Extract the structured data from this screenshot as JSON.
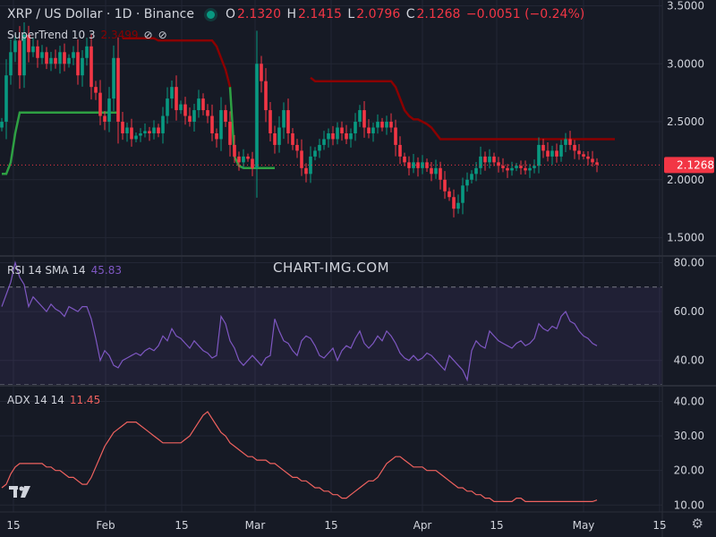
{
  "header": {
    "symbol": "XRP / US Dollar · 1D · Binance",
    "open_label": "O",
    "open": "2.1320",
    "high_label": "H",
    "high": "2.1415",
    "low_label": "L",
    "low": "2.0796",
    "close_label": "C",
    "close": "2.1268",
    "change": "−0.0051 (−0.24%)"
  },
  "indicators": {
    "supertrend": {
      "label": "SuperTrend 10 3",
      "value": "2.3499"
    },
    "rsi": {
      "label": "RSI 14 SMA 14",
      "value": "45.83"
    },
    "adx": {
      "label": "ADX 14 14",
      "value": "11.45"
    }
  },
  "watermark": "CHART-IMG.COM",
  "price_tag": "2.1268",
  "colors": {
    "background": "#161a25",
    "grid": "#232735",
    "up": "#089981",
    "down": "#f23645",
    "supertrend_up": "#2ea043",
    "supertrend_down": "#8b0000",
    "rsi": "#7e57c2",
    "adx": "#f0625f",
    "text": "#d1d4dc"
  },
  "icons": [
    "tradingview-logo-icon",
    "settings-gear-icon",
    "status-dot-icon",
    "eye-off-icon"
  ],
  "chart_data": [
    {
      "type": "candlestick",
      "title": "XRP / US Dollar · 1D · Binance",
      "x_ticks": [
        "15",
        "Feb",
        "15",
        "Mar",
        "15",
        "Apr",
        "15",
        "May",
        "15"
      ],
      "y_ticks": [
        "1.5000",
        "2.0000",
        "2.5000",
        "3.0000",
        "3.5000"
      ],
      "ylim": [
        1.35,
        3.55
      ],
      "last_price": 2.1268,
      "x_start": "2025-01-15",
      "close": [
        2.5,
        2.9,
        3.1,
        3.2,
        2.9,
        3.25,
        3.1,
        3.15,
        3.05,
        3.1,
        3.0,
        3.05,
        3.0,
        3.1,
        3.0,
        3.05,
        3.1,
        2.9,
        3.05,
        3.15,
        2.8,
        2.75,
        2.55,
        2.5,
        2.7,
        3.05,
        2.5,
        2.4,
        2.45,
        2.35,
        2.38,
        2.4,
        2.42,
        2.4,
        2.45,
        2.4,
        2.55,
        2.7,
        2.8,
        2.6,
        2.65,
        2.55,
        2.5,
        2.6,
        2.7,
        2.6,
        2.55,
        2.4,
        2.35,
        2.6,
        2.5,
        2.3,
        2.2,
        2.15,
        2.2,
        2.18,
        2.1,
        3.0,
        2.85,
        2.6,
        2.4,
        2.3,
        2.45,
        2.6,
        2.4,
        2.3,
        2.25,
        2.1,
        2.05,
        2.2,
        2.25,
        2.3,
        2.35,
        2.4,
        2.35,
        2.45,
        2.4,
        2.35,
        2.4,
        2.5,
        2.6,
        2.45,
        2.4,
        2.45,
        2.5,
        2.45,
        2.5,
        2.45,
        2.3,
        2.2,
        2.15,
        2.1,
        2.15,
        2.1,
        2.15,
        2.1,
        2.05,
        2.1,
        2.0,
        1.9,
        1.85,
        1.75,
        1.8,
        1.95,
        2.0,
        2.05,
        2.1,
        2.2,
        2.15,
        2.2,
        2.15,
        2.12,
        2.1,
        2.08,
        2.1,
        2.12,
        2.1,
        2.08,
        2.1,
        2.12,
        2.3,
        2.25,
        2.2,
        2.25,
        2.2,
        2.3,
        2.35,
        2.3,
        2.25,
        2.22,
        2.2,
        2.18,
        2.15,
        2.13
      ]
    },
    {
      "type": "line",
      "name": "SuperTrend 10 3",
      "x_start": "2025-01-15",
      "up_series": [
        2.05,
        2.05,
        2.15,
        2.4,
        2.58,
        2.58,
        2.58,
        2.58,
        2.58,
        2.58,
        2.58,
        2.58,
        2.58,
        2.58,
        2.58,
        2.58,
        2.58,
        2.58,
        2.58,
        2.58,
        2.58,
        2.58,
        2.58,
        2.58,
        2.58,
        2.58,
        2.58,
        null,
        null,
        null,
        null,
        null,
        null,
        null,
        null,
        null,
        null,
        null,
        null,
        null,
        null,
        null,
        null,
        null,
        null,
        null,
        null,
        null,
        null,
        null,
        null,
        null,
        null,
        null,
        null,
        null,
        null,
        null,
        null,
        null,
        null,
        null,
        null,
        null,
        null,
        null,
        null,
        null,
        null,
        null,
        null,
        null,
        null,
        null,
        null,
        null,
        null,
        null,
        null,
        null,
        null,
        null,
        null,
        null,
        null,
        null,
        null,
        null,
        null,
        null,
        null,
        null,
        null,
        null,
        null,
        null,
        null,
        null,
        null,
        null,
        null,
        null,
        null,
        null,
        null,
        null,
        null,
        null,
        null,
        null,
        null,
        null,
        null,
        null,
        null,
        null,
        null,
        null,
        null,
        null,
        null,
        null,
        null,
        null,
        null,
        null,
        null,
        null,
        null,
        null,
        null,
        null,
        null,
        null
      ],
      "down_series": [
        null,
        null,
        null,
        null,
        null,
        null,
        null,
        null,
        null,
        null,
        null,
        null,
        null,
        null,
        null,
        null,
        null,
        null,
        null,
        null,
        null,
        null,
        null,
        null,
        null,
        null,
        null,
        3.22,
        3.22,
        3.22,
        3.22,
        3.22,
        3.22,
        3.22,
        3.22,
        3.2,
        3.2,
        3.2,
        3.2,
        3.2,
        3.2,
        3.2,
        3.2,
        3.2,
        3.2,
        3.2,
        3.2,
        3.2,
        3.15,
        3.05,
        2.95,
        2.8,
        null,
        null,
        null,
        null,
        null,
        null,
        null,
        null,
        null,
        null,
        null,
        null,
        null,
        null,
        null,
        null,
        null,
        2.88,
        2.85,
        2.85,
        2.85,
        2.85,
        2.85,
        2.85,
        2.85,
        2.85,
        2.85,
        2.85,
        2.85,
        2.85,
        2.85,
        2.85,
        2.85,
        2.85,
        2.85,
        2.85,
        2.8,
        2.7,
        2.6,
        2.55,
        2.52,
        2.52,
        2.5,
        2.48,
        2.45,
        2.4,
        2.35,
        2.35,
        2.35,
        2.35,
        2.35,
        2.35,
        2.35,
        2.35,
        2.35,
        2.35,
        2.35,
        2.35,
        2.35,
        2.35,
        2.35,
        2.35,
        2.35,
        2.35,
        2.35,
        2.35,
        2.35,
        2.35,
        2.35,
        2.35,
        2.35,
        2.35,
        2.35,
        2.35,
        2.35,
        2.35,
        2.35,
        2.35,
        2.35,
        2.35,
        2.35,
        2.35,
        2.35,
        2.35,
        2.35,
        2.35
      ],
      "mid_series": [
        null,
        null,
        null,
        null,
        null,
        null,
        null,
        null,
        null,
        null,
        null,
        null,
        null,
        null,
        null,
        null,
        null,
        null,
        null,
        null,
        null,
        null,
        null,
        null,
        null,
        null,
        null,
        null,
        null,
        null,
        null,
        null,
        null,
        null,
        null,
        null,
        null,
        null,
        null,
        null,
        null,
        null,
        null,
        null,
        null,
        null,
        null,
        null,
        null,
        null,
        null,
        2.8,
        2.2,
        2.12,
        2.1,
        2.1,
        2.1,
        2.1,
        2.1,
        2.1,
        2.1,
        2.1,
        null,
        null,
        null,
        null,
        null,
        null,
        null,
        null,
        null,
        null,
        null,
        null,
        null,
        null,
        null,
        null,
        null,
        null,
        null,
        null,
        null,
        null,
        null,
        null,
        null,
        null,
        null,
        null,
        null,
        null,
        null,
        null,
        null,
        null,
        null,
        null,
        null,
        null,
        null,
        null,
        null,
        null,
        null,
        null,
        null,
        null,
        null,
        null,
        null,
        null,
        null,
        null,
        null,
        null,
        null,
        null,
        null,
        null,
        null,
        null,
        null,
        null,
        null,
        null,
        null,
        null,
        null,
        null,
        null,
        null,
        null,
        null
      ]
    },
    {
      "type": "line",
      "name": "RSI 14 SMA 14",
      "y_ticks": [
        "40.00",
        "60.00",
        "80.00"
      ],
      "ylim": [
        30,
        82
      ],
      "bands": [
        30,
        70
      ],
      "x_start": "2025-01-15",
      "values": [
        62,
        67,
        72,
        80,
        74,
        71,
        62,
        66,
        64,
        62,
        60,
        63,
        61,
        60,
        58,
        62,
        61,
        60,
        62,
        62,
        57,
        49,
        40,
        44,
        42,
        38,
        37,
        40,
        41,
        42,
        43,
        42,
        44,
        45,
        44,
        46,
        50,
        48,
        53,
        50,
        49,
        47,
        45,
        48,
        46,
        44,
        43,
        41,
        42,
        58,
        55,
        48,
        45,
        40,
        38,
        40,
        42,
        40,
        38,
        41,
        42,
        57,
        52,
        48,
        47,
        44,
        42,
        48,
        50,
        49,
        46,
        42,
        41,
        43,
        45,
        40,
        44,
        46,
        45,
        49,
        52,
        47,
        45,
        47,
        50,
        48,
        52,
        50,
        47,
        43,
        41,
        40,
        42,
        40,
        41,
        43,
        42,
        40,
        38,
        36,
        42,
        40,
        38,
        36,
        32,
        44,
        48,
        46,
        45,
        52,
        50,
        48,
        47,
        46,
        45,
        47,
        48,
        46,
        47,
        49,
        55,
        53,
        52,
        54,
        53,
        58,
        60,
        56,
        55,
        52,
        50,
        49,
        47,
        46
      ],
      "value": 45.83
    },
    {
      "type": "line",
      "name": "ADX 14 14",
      "y_ticks": [
        "10.00",
        "20.00",
        "30.00",
        "40.00"
      ],
      "ylim": [
        8,
        44
      ],
      "x_start": "2025-01-15",
      "values": [
        15,
        16,
        19,
        21,
        22,
        22,
        22,
        22,
        22,
        22,
        21,
        21,
        20,
        20,
        19,
        18,
        18,
        17,
        16,
        16,
        18,
        21,
        24,
        27,
        29,
        31,
        32,
        33,
        34,
        34,
        34,
        33,
        32,
        31,
        30,
        29,
        28,
        28,
        28,
        28,
        28,
        29,
        30,
        32,
        34,
        36,
        37,
        35,
        33,
        31,
        30,
        28,
        27,
        26,
        25,
        24,
        24,
        23,
        23,
        23,
        22,
        22,
        21,
        20,
        19,
        18,
        18,
        17,
        17,
        16,
        15,
        15,
        14,
        14,
        13,
        13,
        12,
        12,
        13,
        14,
        15,
        16,
        17,
        17,
        18,
        20,
        22,
        23,
        24,
        24,
        23,
        22,
        21,
        21,
        21,
        20,
        20,
        20,
        19,
        18,
        17,
        16,
        15,
        15,
        14,
        14,
        13,
        13,
        12,
        12,
        11,
        11,
        11,
        11,
        11,
        12,
        12,
        11,
        11,
        11,
        11,
        11,
        11,
        11,
        11,
        11,
        11,
        11,
        11,
        11,
        11,
        11,
        11,
        11.45
      ],
      "value": 11.45
    }
  ]
}
